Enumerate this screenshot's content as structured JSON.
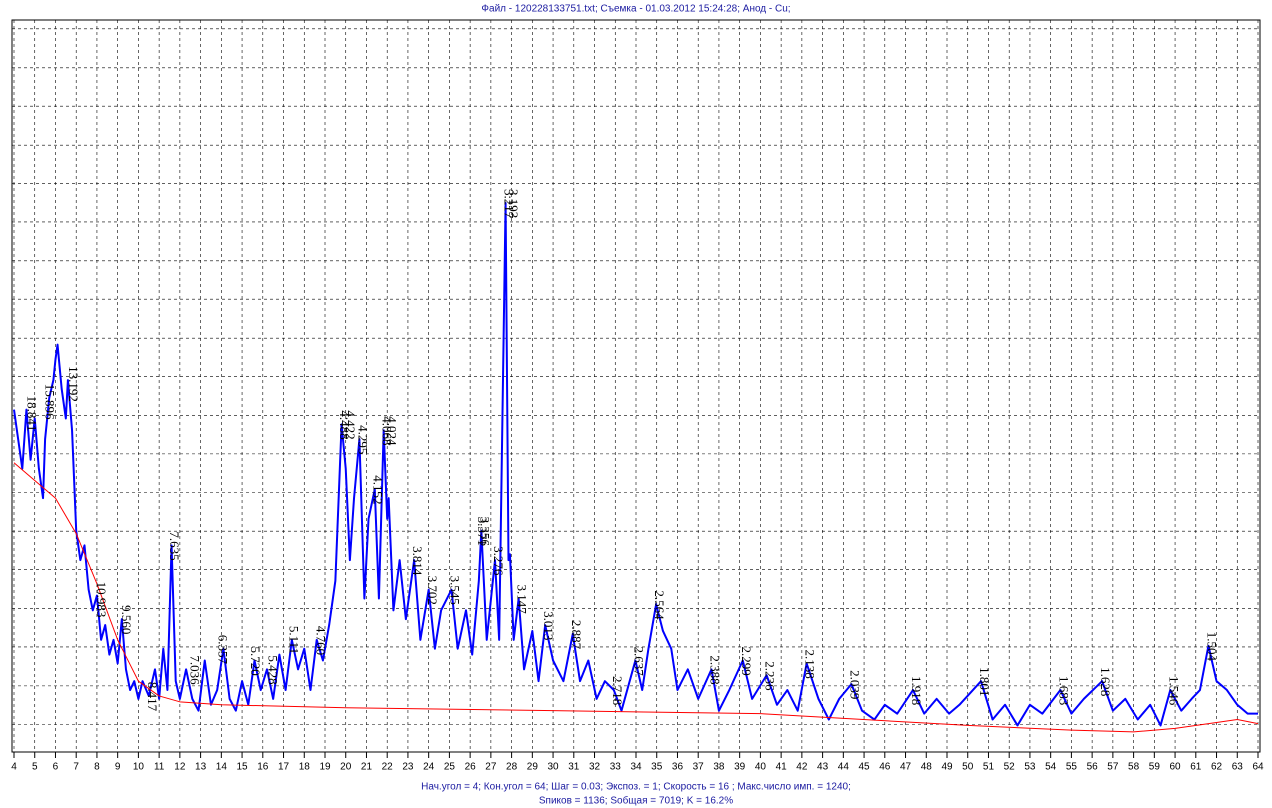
{
  "chart_data": {
    "type": "line",
    "title": "Файл - 120228133751.txt;  Съемка - 01.03.2012 15:24:28;  Анод - Cu;",
    "footer": [
      "Нач.угол = 4;  Кон.угол = 64;  Шаг = 0.03;  Экспоз. = 1;  Скорость =  16 ;  Макс.число имп. = 1240;",
      "Sпиков =  1136;  Sобщая =  7019;  K =  16.2%"
    ],
    "xlim": [
      4,
      64
    ],
    "xticks": [
      4,
      5,
      6,
      7,
      8,
      9,
      10,
      11,
      12,
      13,
      14,
      15,
      16,
      17,
      18,
      19,
      20,
      21,
      22,
      23,
      24,
      25,
      26,
      27,
      28,
      29,
      30,
      31,
      32,
      33,
      34,
      35,
      36,
      37,
      38,
      39,
      40,
      41,
      42,
      43,
      44,
      45,
      46,
      47,
      48,
      49,
      50,
      51,
      52,
      53,
      54,
      55,
      56,
      57,
      58,
      59,
      60,
      61,
      62,
      63,
      64
    ],
    "ylim": [
      0,
      1240
    ],
    "ygrid": [
      47,
      112,
      178,
      243,
      309,
      374,
      440,
      505,
      570,
      636,
      701,
      767,
      832,
      898,
      963,
      1028,
      1094,
      1159,
      1225
    ],
    "grid": true,
    "series": [
      {
        "color": "#0000ff",
        "x": [
          4,
          4.2,
          4.4,
          4.6,
          4.8,
          5.0,
          5.2,
          5.4,
          5.5,
          5.7,
          5.9,
          6.0,
          6.1,
          6.3,
          6.5,
          6.6,
          6.8,
          6.9,
          7.0,
          7.2,
          7.4,
          7.6,
          7.8,
          8.0,
          8.2,
          8.4,
          8.6,
          8.8,
          9.0,
          9.2,
          9.4,
          9.6,
          9.8,
          10.0,
          10.2,
          10.5,
          10.8,
          11.0,
          11.2,
          11.4,
          11.6,
          11.8,
          12.0,
          12.3,
          12.6,
          12.9,
          13.2,
          13.5,
          13.8,
          14.1,
          14.4,
          14.7,
          15.0,
          15.3,
          15.6,
          15.9,
          16.2,
          16.5,
          16.8,
          17.1,
          17.4,
          17.7,
          18.0,
          18.3,
          18.6,
          18.9,
          19.2,
          19.5,
          19.8,
          20.0,
          20.2,
          20.4,
          20.66,
          20.9,
          21.1,
          21.4,
          21.6,
          21.83,
          22.0,
          22.07,
          22.3,
          22.6,
          22.9,
          23.3,
          23.6,
          24.0,
          24.3,
          24.6,
          25.1,
          25.4,
          25.8,
          26.1,
          26.42,
          26.54,
          26.8,
          27.2,
          27.4,
          27.71,
          27.85,
          27.92,
          28.1,
          28.34,
          28.6,
          29.0,
          29.3,
          29.62,
          30.0,
          30.5,
          30.95,
          31.3,
          31.7,
          32.1,
          32.5,
          32.93,
          33.3,
          33.97,
          34.3,
          34.6,
          34.97,
          35.3,
          35.7,
          36.0,
          36.5,
          37.0,
          37.64,
          38.0,
          38.5,
          39.15,
          39.6,
          40.3,
          40.8,
          41.3,
          41.8,
          42.23,
          42.8,
          43.3,
          43.8,
          44.39,
          44.9,
          45.5,
          46.0,
          46.6,
          47.36,
          47.9,
          48.5,
          49.1,
          49.6,
          50.64,
          51.2,
          51.8,
          52.4,
          53.0,
          53.6,
          54.47,
          55.0,
          55.6,
          56.48,
          57.0,
          57.6,
          58.2,
          58.8,
          59.3,
          59.77,
          60.3,
          60.8,
          61.2,
          61.61,
          62.0,
          62.5,
          63.0,
          63.5,
          64.0
        ],
        "values": [
          580,
          530,
          480,
          580,
          495,
          565,
          480,
          430,
          530,
          600,
          630,
          665,
          690,
          615,
          565,
          630,
          545,
          460,
          375,
          325,
          350,
          275,
          240,
          265,
          190,
          215,
          165,
          190,
          150,
          225,
          140,
          105,
          120,
          90,
          120,
          95,
          140,
          90,
          175,
          105,
          350,
          120,
          90,
          140,
          90,
          70,
          155,
          80,
          105,
          175,
          90,
          70,
          120,
          80,
          155,
          105,
          140,
          90,
          165,
          105,
          190,
          140,
          175,
          105,
          190,
          155,
          215,
          290,
          555,
          480,
          325,
          430,
          530,
          260,
          395,
          445,
          260,
          545,
          395,
          430,
          240,
          325,
          225,
          325,
          190,
          275,
          175,
          240,
          275,
          175,
          240,
          165,
          290,
          375,
          190,
          325,
          190,
          930,
          325,
          335,
          190,
          260,
          140,
          205,
          120,
          215,
          155,
          120,
          200,
          120,
          155,
          90,
          120,
          105,
          70,
          155,
          105,
          175,
          250,
          205,
          175,
          105,
          140,
          90,
          140,
          70,
          105,
          155,
          90,
          130,
          80,
          105,
          70,
          150,
          90,
          55,
          90,
          115,
          70,
          55,
          80,
          65,
          105,
          65,
          90,
          65,
          80,
          120,
          55,
          80,
          45,
          80,
          65,
          105,
          65,
          90,
          120,
          70,
          90,
          55,
          80,
          45,
          105,
          70,
          90,
          105,
          180,
          120,
          105,
          80,
          65,
          65
        ]
      },
      {
        "color": "#ff0000",
        "x": [
          4,
          5,
          6,
          7,
          8,
          9,
          10,
          11,
          12,
          14,
          20,
          30,
          40,
          50,
          55,
          58,
          60,
          62,
          63,
          64
        ],
        "values": [
          490,
          460,
          430,
          370,
          285,
          190,
          120,
          95,
          85,
          80,
          75,
          70,
          65,
          45,
          37,
          34,
          40,
          50,
          55,
          48
        ]
      }
    ],
    "peaks": [
      {
        "x": 4.69,
        "label": "18.841"
      },
      {
        "x": 5.56,
        "label": "15.896"
      },
      {
        "x": 6.7,
        "label": "13.192"
      },
      {
        "x": 8.05,
        "label": "10.983"
      },
      {
        "x": 9.25,
        "label": "9.560"
      },
      {
        "x": 10.5,
        "label": "8.417"
      },
      {
        "x": 11.58,
        "label": "7.635"
      },
      {
        "x": 12.57,
        "label": "7.036"
      },
      {
        "x": 13.92,
        "label": "6.357"
      },
      {
        "x": 15.48,
        "label": "5.720"
      },
      {
        "x": 16.32,
        "label": "5.428"
      },
      {
        "x": 17.34,
        "label": "5.111"
      },
      {
        "x": 18.63,
        "label": "4.760"
      },
      {
        "x": 19.77,
        "label": "4.488"
      },
      {
        "x": 20.07,
        "label": "4.422"
      },
      {
        "x": 20.66,
        "label": "4.295"
      },
      {
        "x": 21.39,
        "label": "4.152"
      },
      {
        "x": 21.83,
        "label": "4.068"
      },
      {
        "x": 22.07,
        "label": "4.024"
      },
      {
        "x": 23.3,
        "label": "3.814"
      },
      {
        "x": 24.02,
        "label": "3.702"
      },
      {
        "x": 25.1,
        "label": "3.545"
      },
      {
        "x": 26.42,
        "label": "3.371"
      },
      {
        "x": 26.54,
        "label": "3.356"
      },
      {
        "x": 27.2,
        "label": "3.276"
      },
      {
        "x": 27.71,
        "label": "3.217"
      },
      {
        "x": 27.92,
        "label": "3.193"
      },
      {
        "x": 28.34,
        "label": "3.147"
      },
      {
        "x": 29.62,
        "label": "3.013"
      },
      {
        "x": 30.95,
        "label": "2.887"
      },
      {
        "x": 32.93,
        "label": "2.718"
      },
      {
        "x": 33.97,
        "label": "2.637"
      },
      {
        "x": 34.97,
        "label": "2.564"
      },
      {
        "x": 37.64,
        "label": "2.388"
      },
      {
        "x": 39.15,
        "label": "2.299"
      },
      {
        "x": 40.3,
        "label": "2.236"
      },
      {
        "x": 42.23,
        "label": "2.138"
      },
      {
        "x": 44.39,
        "label": "2.039"
      },
      {
        "x": 47.36,
        "label": "1.918"
      },
      {
        "x": 50.64,
        "label": "1.801"
      },
      {
        "x": 54.47,
        "label": "1.683"
      },
      {
        "x": 56.48,
        "label": "1.628"
      },
      {
        "x": 59.77,
        "label": "1.546"
      },
      {
        "x": 61.61,
        "label": "1.504"
      }
    ]
  }
}
